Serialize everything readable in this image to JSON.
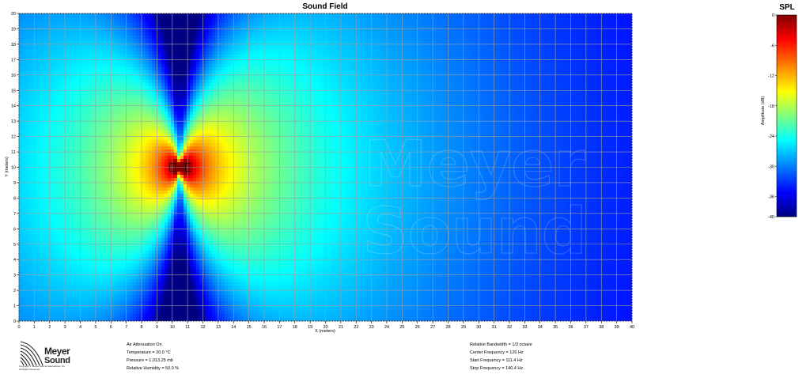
{
  "chart_data": {
    "type": "heatmap",
    "title": "Sound Field",
    "xlabel": "X (meters)",
    "ylabel": "Y (meters)",
    "xlim": [
      0,
      40
    ],
    "ylim": [
      0,
      20
    ],
    "x_ticks": [
      0,
      1,
      2,
      3,
      4,
      5,
      6,
      7,
      8,
      9,
      10,
      11,
      12,
      13,
      14,
      15,
      16,
      17,
      18,
      19,
      20,
      21,
      22,
      23,
      24,
      25,
      26,
      27,
      28,
      29,
      30,
      31,
      32,
      33,
      34,
      35,
      36,
      37,
      38,
      39,
      40
    ],
    "y_ticks": [
      0,
      1,
      2,
      3,
      4,
      5,
      6,
      7,
      8,
      9,
      10,
      11,
      12,
      13,
      14,
      15,
      16,
      17,
      18,
      19,
      20
    ],
    "grid": true,
    "source_location": [
      10.5,
      10.0
    ],
    "colorbar": {
      "title": "SPL",
      "label": "Amplitude (dB)",
      "ticks": [
        0,
        -6,
        -12,
        -18,
        -24,
        -30,
        -36,
        -40
      ],
      "range": [
        -40,
        0
      ]
    },
    "colormap_stops": [
      "#00007f",
      "#0000ff",
      "#00ffff",
      "#ffff00",
      "#ff0000",
      "#7f0000"
    ]
  },
  "watermark": "Meyer Sound",
  "footer": {
    "left": [
      "Air Attenuation On",
      "Temperature = 20.0 °C",
      "Pressure = 1,013.25 mb",
      "Relative Humidity = 50.0 %"
    ],
    "right": [
      "Relative Bandwidth = 1/3 octave",
      "Center Frequency = 126 Hz",
      "Start Frequency = 111.4 Hz",
      "Stop Frequency = 140.4 Hz"
    ]
  },
  "logo": {
    "line1": "Meyer",
    "line2": "Sound",
    "small1": "Copyright © Meyer Sound Laboratories, Inc.",
    "small2": "All Rights Reserved"
  }
}
